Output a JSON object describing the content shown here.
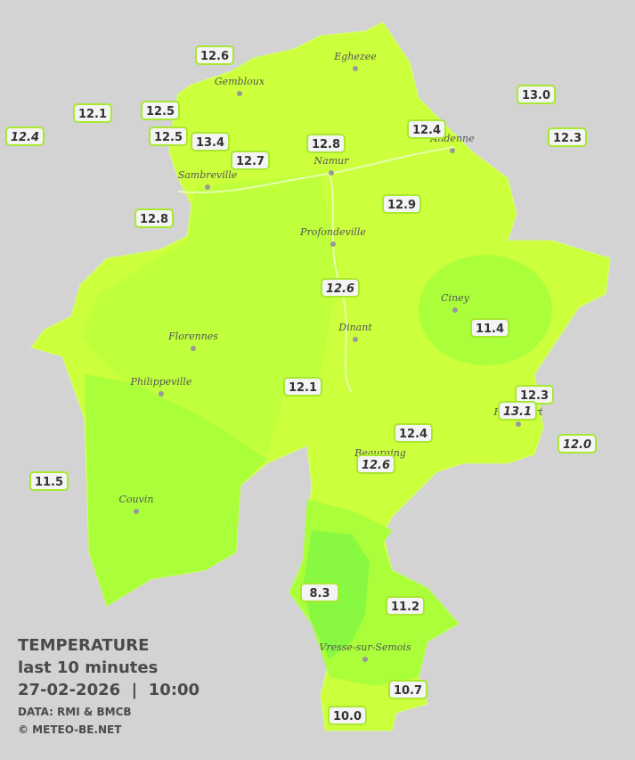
{
  "cities": [
    "Eghezee",
    "Gembloux",
    "Andenne",
    "Namur",
    "Sambreville",
    "Profondeville",
    "Ciney",
    "Dinant",
    "Florennes",
    "Philippeville",
    "Beauraing",
    "Rochefort",
    "Couvin",
    "Vresse-sur-Semois"
  ],
  "stations": [
    {
      "label": "12.6"
    },
    {
      "label": "12.1"
    },
    {
      "label": "12.4",
      "italic": true
    },
    {
      "label": "12.5"
    },
    {
      "label": "12.5"
    },
    {
      "label": "13.4"
    },
    {
      "label": "12.7"
    },
    {
      "label": "12.8"
    },
    {
      "label": "12.4"
    },
    {
      "label": "13.0"
    },
    {
      "label": "12.3"
    },
    {
      "label": "12.8"
    },
    {
      "label": "12.9"
    },
    {
      "label": "12.6",
      "italic": true
    },
    {
      "label": "11.4"
    },
    {
      "label": "12.1"
    },
    {
      "label": "12.3"
    },
    {
      "label": "13.1",
      "italic": true
    },
    {
      "label": "12.0",
      "italic": true
    },
    {
      "label": "12.4"
    },
    {
      "label": "12.6",
      "italic": true
    },
    {
      "label": "11.5"
    },
    {
      "label": "8.3"
    },
    {
      "label": "11.2"
    },
    {
      "label": "10.7"
    },
    {
      "label": "10.0"
    }
  ],
  "legend": {
    "title": "TEMPERATURE",
    "subtitle": "last 10 minutes",
    "datetime": "27-02-2026  |  10:00",
    "source": "DATA: RMI & BMCB",
    "credit": "© METEO-BE.NET"
  }
}
